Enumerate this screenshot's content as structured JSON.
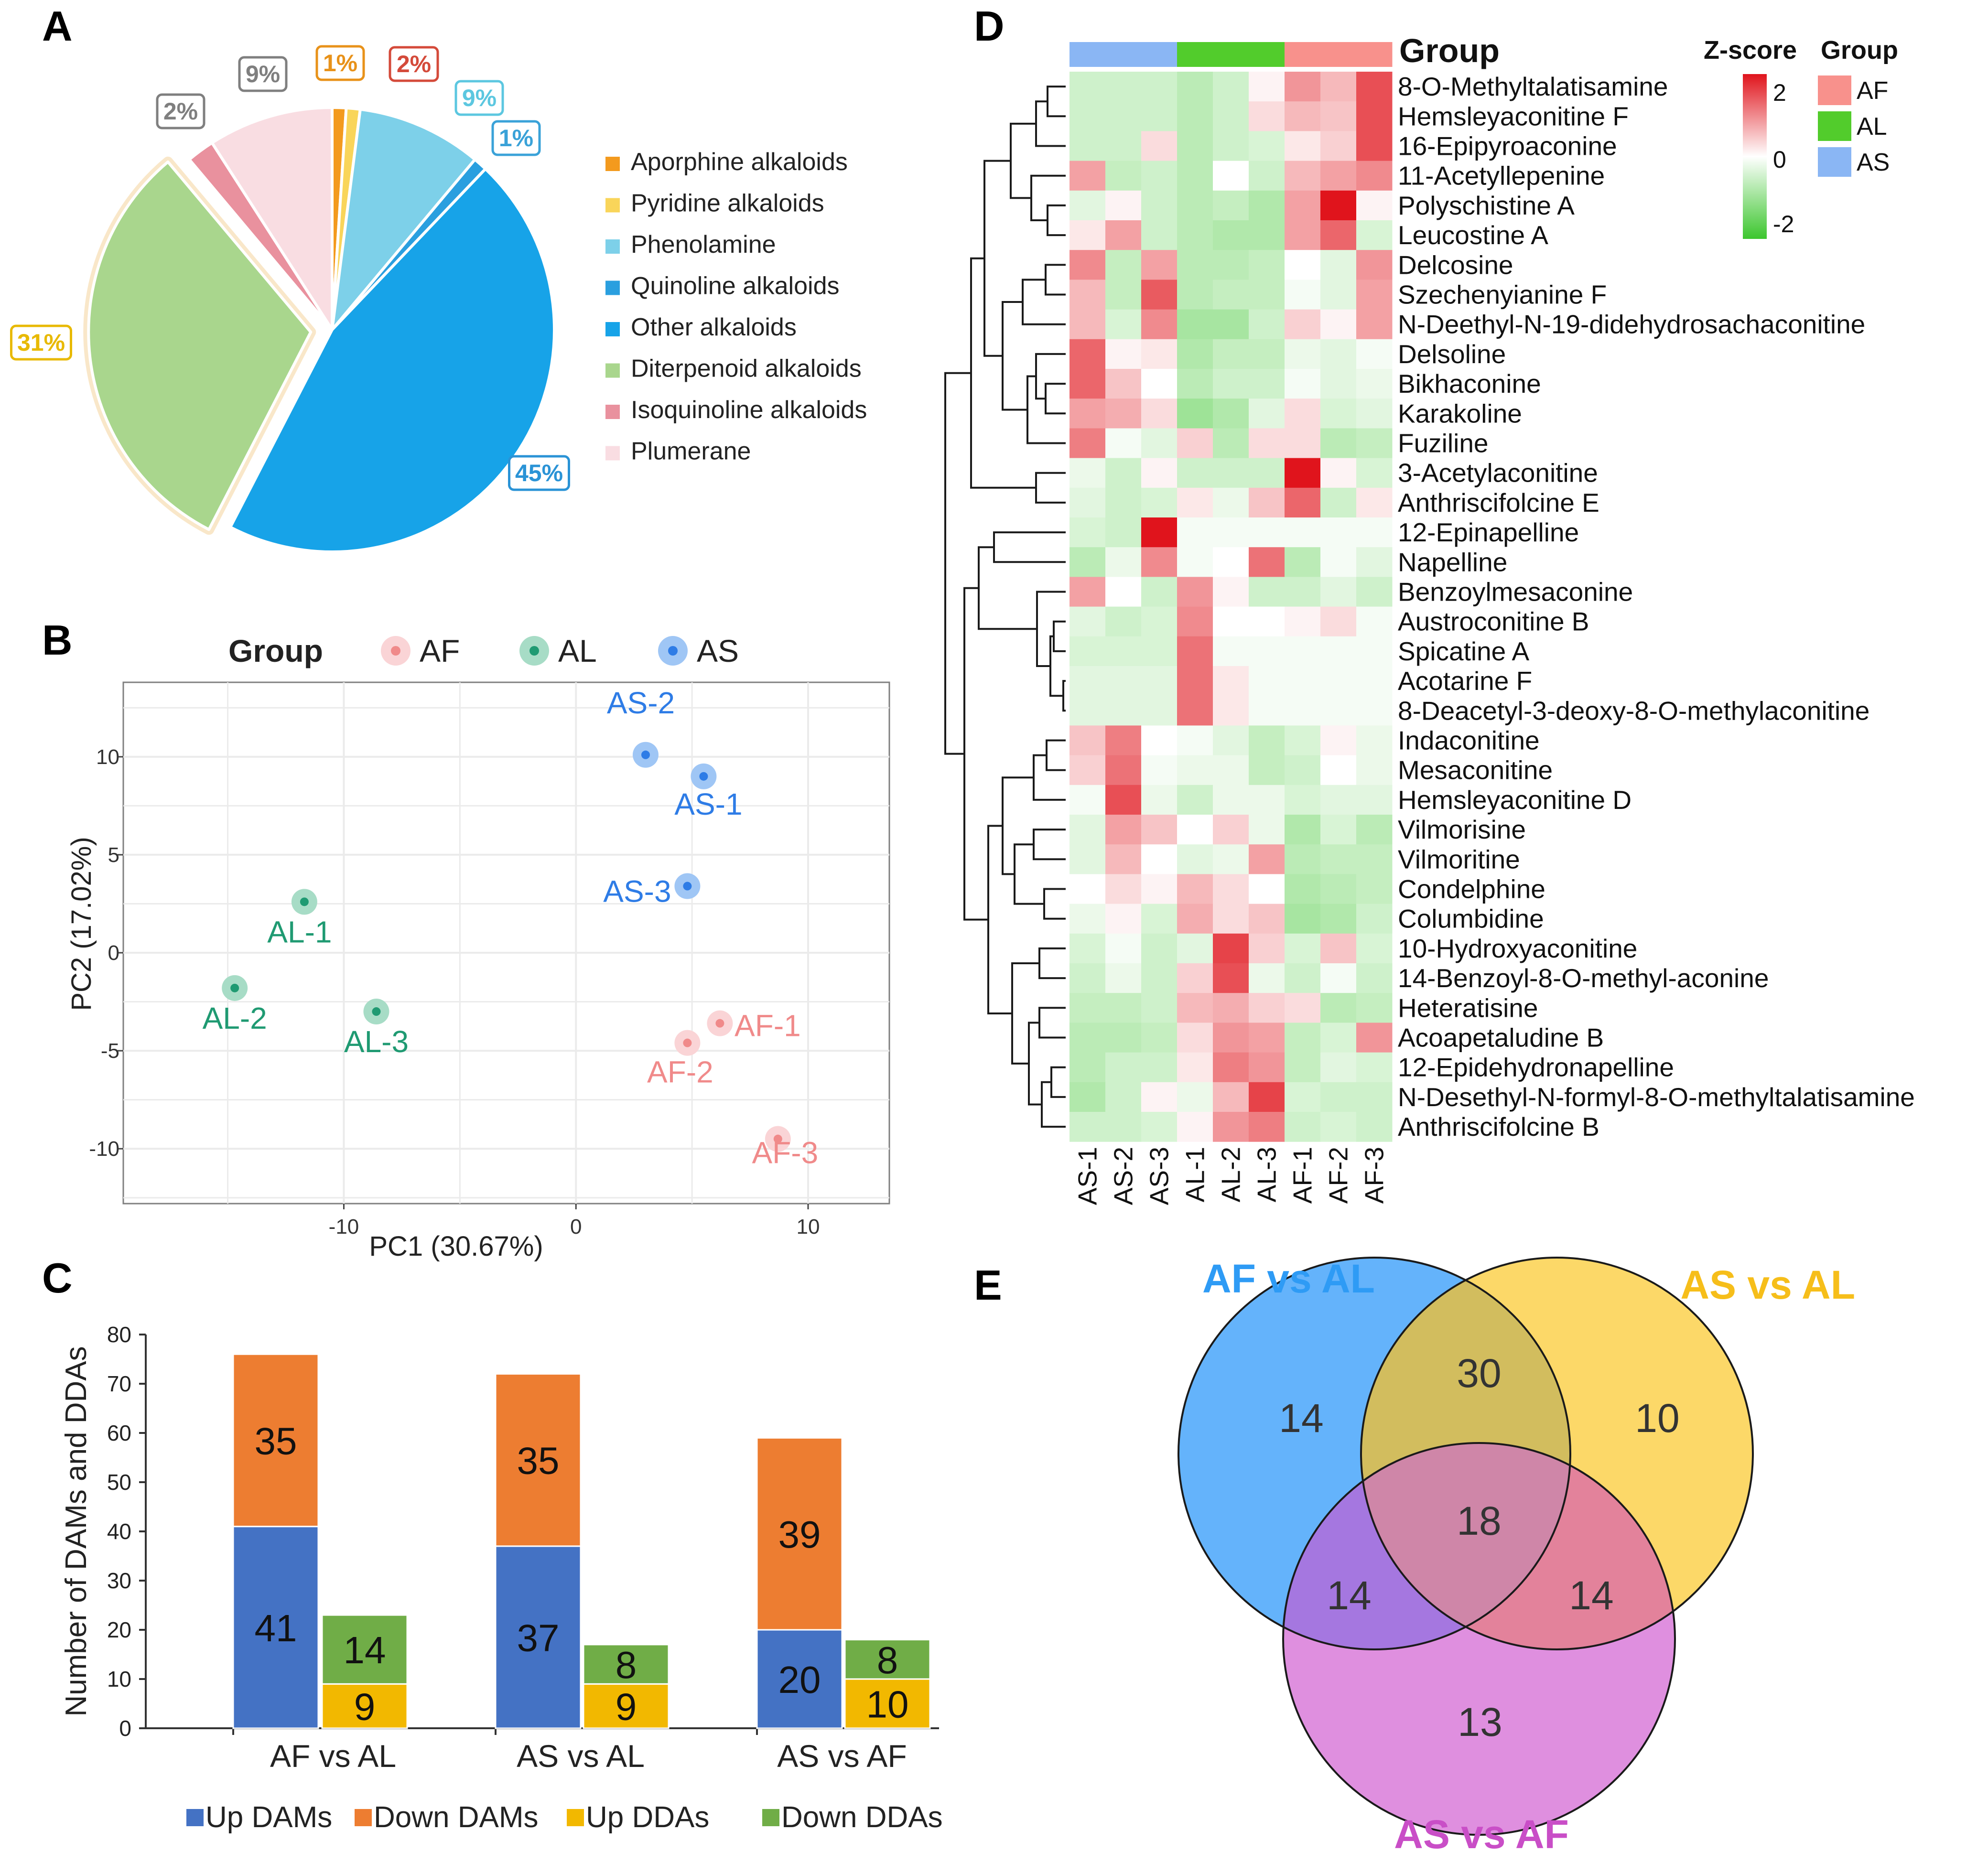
{
  "panels": {
    "a": "A",
    "b": "B",
    "c": "C",
    "d": "D",
    "e": "E"
  },
  "chart_data": [
    {
      "id": "A",
      "type": "pie",
      "categories": [
        "Aporphine alkaloids",
        "Pyridine alkaloids",
        "Phenolamine",
        "Quinoline alkaloids",
        "Other alkaloids",
        "Diterpenoid alkaloids",
        "Isoquinoline alkaloids",
        "Plumerane"
      ],
      "values": [
        1,
        1,
        9,
        1,
        45,
        31,
        2,
        9
      ],
      "labels": [
        "1%",
        "",
        "9%",
        "1%",
        "45%",
        "31%",
        "2%",
        "9%"
      ],
      "extra_label": {
        "text": "2%",
        "color": "#D44A3A"
      },
      "colors": [
        "#F39A1E",
        "#F9D55A",
        "#7DD0E9",
        "#2A9FDF",
        "#17A3E8",
        "#A9D68D",
        "#E9919E",
        "#F9DDE2"
      ],
      "label_colors": [
        "#E8921A",
        "",
        "#5CC7E0",
        "#3AA2D8",
        "#2A93D6",
        "#E8B900",
        "#7F7F7F",
        "#7F7F7F"
      ],
      "exploded": [
        "Diterpenoid alkaloids"
      ]
    },
    {
      "id": "B",
      "type": "scatter",
      "xlabel": "PC1 (30.67%)",
      "ylabel": "PC2 (17.02%)",
      "xlim": [
        -19.5,
        13.5
      ],
      "ylim": [
        -12.8,
        13.8
      ],
      "xticks": [
        -10,
        0,
        10
      ],
      "xtick_labels": [
        "-10",
        "0",
        "10"
      ],
      "yticks": [
        -10,
        -5,
        0,
        5,
        10
      ],
      "ytick_labels": [
        "-10",
        "-5",
        "0",
        "5",
        "10"
      ],
      "legend_title": "Group",
      "groups": [
        {
          "name": "AF",
          "color": "#F08A8A",
          "light": "#FAD4D6"
        },
        {
          "name": "AL",
          "color": "#1F9A72",
          "light": "#A7DCC6"
        },
        {
          "name": "AS",
          "color": "#2E7CE6",
          "light": "#9FC6F5"
        }
      ],
      "points": [
        {
          "label": "AS-1",
          "group": "AS",
          "x": 5.5,
          "y": 9.0
        },
        {
          "label": "AS-2",
          "group": "AS",
          "x": 3.0,
          "y": 10.1
        },
        {
          "label": "AS-3",
          "group": "AS",
          "x": 4.8,
          "y": 3.4
        },
        {
          "label": "AL-1",
          "group": "AL",
          "x": -11.7,
          "y": 2.6
        },
        {
          "label": "AL-2",
          "group": "AL",
          "x": -14.7,
          "y": -1.8
        },
        {
          "label": "AL-3",
          "group": "AL",
          "x": -8.6,
          "y": -3.0
        },
        {
          "label": "AF-1",
          "group": "AF",
          "x": 6.2,
          "y": -3.6
        },
        {
          "label": "AF-2",
          "group": "AF",
          "x": 4.8,
          "y": -4.6
        },
        {
          "label": "AF-3",
          "group": "AF",
          "x": 8.7,
          "y": -9.5
        }
      ]
    },
    {
      "id": "C",
      "type": "bar",
      "stacked": true,
      "ylabel": "Number of  DAMs and DDAs",
      "ylim": [
        0,
        80
      ],
      "yticks": [
        0,
        10,
        20,
        30,
        40,
        50,
        60,
        70,
        80
      ],
      "categories": [
        "AF vs AL",
        "AS vs AL",
        "AS vs AF"
      ],
      "series": [
        {
          "name": "Up DAMs",
          "color": "#4472C4",
          "stack": "DAMs",
          "values": [
            41,
            37,
            20
          ]
        },
        {
          "name": "Down DAMs",
          "color": "#ED7D31",
          "stack": "DAMs",
          "values": [
            35,
            35,
            39
          ]
        },
        {
          "name": "Up DDAs",
          "color": "#F2B800",
          "stack": "DDAs",
          "values": [
            9,
            9,
            10
          ]
        },
        {
          "name": "Down DDAs",
          "color": "#70AD47",
          "stack": "DDAs",
          "values": [
            14,
            8,
            8
          ]
        }
      ]
    },
    {
      "id": "D",
      "type": "heatmap",
      "columns": [
        "AS-1",
        "AS-2",
        "AS-3",
        "AL-1",
        "AL-2",
        "AL-3",
        "AF-1",
        "AF-2",
        "AF-3"
      ],
      "column_groups": [
        "AS",
        "AS",
        "AS",
        "AL",
        "AL",
        "AL",
        "AF",
        "AF",
        "AF"
      ],
      "group_colors": {
        "AF": "#F8918C",
        "AL": "#52CC2C",
        "AS": "#8AB6F4"
      },
      "top_annotation_label": "Group",
      "color_scale": {
        "title": "Z-score",
        "min": -2,
        "max": 2,
        "ticks": [
          2,
          0,
          -2
        ],
        "low": "#3CC62E",
        "mid": "#FFFFFF",
        "high": "#E0141C"
      },
      "group_legend_title": "Group",
      "group_legend": [
        "AF",
        "AL",
        "AS"
      ],
      "rows": [
        "8-O-Methyltalatisamine",
        "Hemsleyaconitine F",
        "16-Epipyroaconine",
        "11-Acetyllepenine",
        "Polyschistine A",
        "Leucostine A",
        "Delcosine",
        "Szechenyianine F",
        "N-Deethyl-N-19-didehydrosachaconitine",
        "Delsoline",
        "Bikhaconine",
        "Karakoline",
        "Fuziline",
        "3-Acetylaconitine",
        "Anthriscifolcine E",
        "12-Epinapelline",
        "Napelline",
        "Benzoylmesaconine",
        "Austroconitine B",
        "Spicatine A",
        "Acotarine F",
        "8-Deacetyl-3-deoxy-8-O-methylaconitine",
        "Indaconitine",
        "Mesaconitine",
        "Hemsleyaconitine D",
        "Vilmorisine",
        "Vilmoritine",
        "Condelphine",
        "Columbidine",
        "10-Hydroxyaconitine",
        "14-Benzoyl-8-O-methyl-aconine",
        "Heteratisine",
        "Acoapetaludine B",
        "12-Epidehydronapelline",
        "N-Desethyl-N-formyl-8-O-methyltalatisamine",
        "Anthriscifolcine B"
      ],
      "values": [
        [
          -0.5,
          -0.5,
          -0.5,
          -0.7,
          -0.5,
          0.1,
          0.9,
          0.6,
          1.5
        ],
        [
          -0.5,
          -0.5,
          -0.5,
          -0.7,
          -0.5,
          0.3,
          0.6,
          0.5,
          1.5
        ],
        [
          -0.5,
          -0.5,
          0.3,
          -0.7,
          -0.5,
          -0.4,
          0.2,
          0.4,
          1.5
        ],
        [
          0.8,
          -0.6,
          -0.5,
          -0.7,
          0.0,
          -0.5,
          0.6,
          0.8,
          1.0
        ],
        [
          -0.3,
          0.1,
          -0.5,
          -0.7,
          -0.6,
          -0.8,
          0.8,
          2.0,
          0.1
        ],
        [
          0.2,
          0.8,
          -0.5,
          -0.7,
          -0.8,
          -0.8,
          0.8,
          1.3,
          -0.4
        ],
        [
          1.0,
          -0.6,
          0.8,
          -0.7,
          -0.7,
          -0.6,
          0.0,
          -0.3,
          0.9
        ],
        [
          0.6,
          -0.6,
          1.4,
          -0.7,
          -0.6,
          -0.6,
          -0.1,
          -0.3,
          0.8
        ],
        [
          0.6,
          -0.4,
          1.0,
          -0.9,
          -0.9,
          -0.5,
          0.4,
          0.1,
          0.8
        ],
        [
          1.3,
          0.1,
          0.2,
          -0.8,
          -0.6,
          -0.6,
          -0.2,
          -0.3,
          -0.1
        ],
        [
          1.3,
          0.5,
          0.0,
          -0.7,
          -0.5,
          -0.5,
          -0.1,
          -0.3,
          -0.2
        ],
        [
          0.8,
          0.7,
          0.3,
          -1.0,
          -0.8,
          -0.3,
          0.3,
          -0.4,
          -0.3
        ],
        [
          1.1,
          -0.1,
          -0.3,
          0.4,
          -0.7,
          0.3,
          0.3,
          -0.7,
          -0.6
        ],
        [
          -0.2,
          -0.5,
          0.1,
          -0.5,
          -0.5,
          -0.5,
          2.0,
          0.1,
          -0.4
        ],
        [
          -0.3,
          -0.5,
          -0.4,
          0.2,
          -0.2,
          0.5,
          1.3,
          -0.5,
          0.2
        ],
        [
          -0.4,
          -0.5,
          2.0,
          -0.1,
          -0.1,
          -0.1,
          -0.1,
          -0.1,
          -0.1
        ],
        [
          -0.7,
          -0.2,
          1.0,
          -0.1,
          0.0,
          1.2,
          -0.7,
          -0.1,
          -0.3
        ],
        [
          0.8,
          0.0,
          -0.5,
          0.9,
          0.1,
          -0.5,
          -0.5,
          -0.3,
          -0.5
        ],
        [
          -0.3,
          -0.5,
          -0.4,
          1.0,
          0.0,
          0.0,
          0.1,
          0.3,
          -0.1
        ],
        [
          -0.4,
          -0.4,
          -0.4,
          1.2,
          -0.1,
          -0.1,
          -0.1,
          -0.1,
          -0.1
        ],
        [
          -0.3,
          -0.3,
          -0.3,
          1.2,
          0.2,
          -0.1,
          -0.1,
          -0.1,
          -0.1
        ],
        [
          -0.3,
          -0.3,
          -0.3,
          1.2,
          0.2,
          -0.1,
          -0.1,
          -0.1,
          -0.1
        ],
        [
          0.5,
          1.1,
          0.0,
          -0.1,
          -0.3,
          -0.6,
          -0.4,
          0.1,
          -0.2
        ],
        [
          0.4,
          1.2,
          -0.1,
          -0.2,
          -0.2,
          -0.6,
          -0.5,
          0.0,
          -0.2
        ],
        [
          -0.1,
          1.5,
          -0.2,
          -0.5,
          -0.2,
          -0.2,
          -0.4,
          -0.3,
          -0.3
        ],
        [
          -0.3,
          0.8,
          0.5,
          0.0,
          0.4,
          -0.2,
          -0.8,
          -0.4,
          -0.7
        ],
        [
          -0.3,
          0.6,
          0.0,
          -0.3,
          -0.2,
          0.8,
          -0.7,
          -0.6,
          -0.6
        ],
        [
          0.0,
          0.3,
          0.1,
          0.6,
          0.3,
          0.0,
          -0.8,
          -0.7,
          -0.6
        ],
        [
          -0.2,
          0.1,
          -0.4,
          0.7,
          0.3,
          0.5,
          -0.9,
          -0.8,
          -0.5
        ],
        [
          -0.4,
          -0.1,
          -0.5,
          -0.3,
          1.6,
          0.4,
          -0.4,
          0.5,
          -0.4
        ],
        [
          -0.5,
          -0.2,
          -0.5,
          0.4,
          1.5,
          -0.2,
          -0.5,
          -0.1,
          -0.5
        ],
        [
          -0.6,
          -0.6,
          -0.5,
          0.6,
          0.7,
          0.4,
          0.3,
          -0.7,
          -0.6
        ],
        [
          -0.7,
          -0.7,
          -0.6,
          0.3,
          0.9,
          0.8,
          -0.6,
          -0.4,
          0.9
        ],
        [
          -0.7,
          -0.5,
          -0.5,
          0.2,
          1.1,
          0.9,
          -0.6,
          -0.3,
          -0.4
        ],
        [
          -0.8,
          -0.5,
          0.1,
          -0.2,
          0.6,
          1.6,
          -0.4,
          -0.5,
          -0.5
        ],
        [
          -0.5,
          -0.5,
          -0.4,
          0.1,
          0.9,
          1.1,
          -0.5,
          -0.4,
          -0.5
        ]
      ]
    },
    {
      "id": "E",
      "type": "venn",
      "sets": [
        {
          "name": "AF vs AL",
          "color": "#2E9BF5",
          "fill": "#64B3FB"
        },
        {
          "name": "AS vs AL",
          "color": "#F6BE1A",
          "fill": "#FCD868"
        },
        {
          "name": "AS vs AF",
          "color": "#C94EC7",
          "fill": "#DF8FDF"
        }
      ],
      "regions": {
        "AF vs AL only": 14,
        "AS vs AL only": 10,
        "AS vs AF only": 13,
        "AF vs AL & AS vs AL": 30,
        "AF vs AL & AS vs AF": 14,
        "AS vs AL & AS vs AF": 14,
        "all three": 18
      }
    }
  ]
}
